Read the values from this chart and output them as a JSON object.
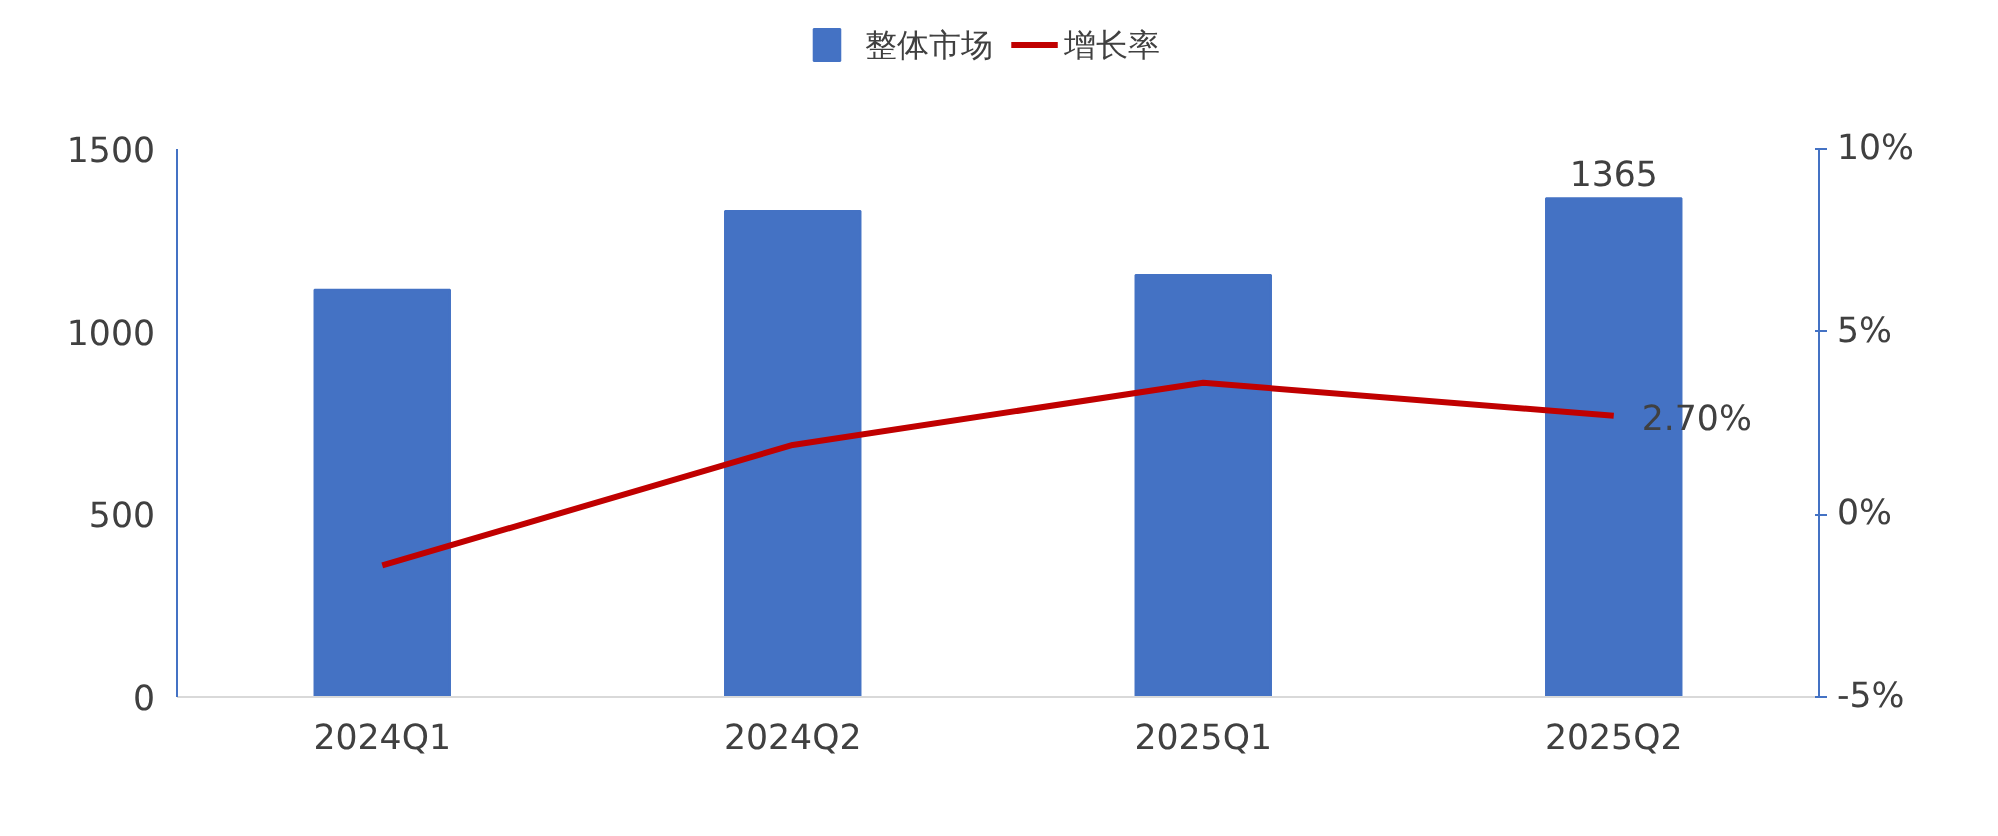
{
  "chart_data": {
    "type": "bar",
    "categories": [
      "2024Q1",
      "2024Q2",
      "2025Q1",
      "2025Q2"
    ],
    "series": [
      {
        "name": "整体市场",
        "color": "#4472c4",
        "values": [
          1115,
          1330,
          1155,
          1365
        ],
        "value_labels": [
          null,
          null,
          null,
          "1365"
        ]
      },
      {
        "name": "增长率",
        "type": "line",
        "axis": "y2",
        "color": "#c00000",
        "values": [
          -1.4,
          1.9,
          3.6,
          2.7
        ],
        "value_labels": [
          null,
          null,
          null,
          "2.70%"
        ]
      }
    ],
    "ylim": [
      0,
      1500
    ],
    "yticks": [
      0,
      500,
      1000,
      1500
    ],
    "y2lim": [
      -5,
      10
    ],
    "y2ticks": [
      {
        "value": -5,
        "label": "-5%"
      },
      {
        "value": 0,
        "label": "0%"
      },
      {
        "value": 5,
        "label": "5%"
      },
      {
        "value": 10,
        "label": "10%"
      }
    ],
    "grid": false,
    "legend": "top",
    "marker": "none",
    "line_style": "solid"
  }
}
